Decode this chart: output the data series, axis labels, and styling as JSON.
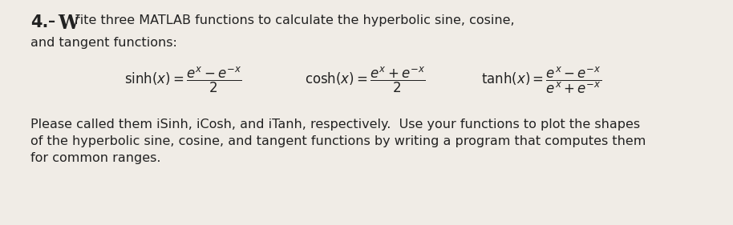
{
  "bg_color": "#f0ece6",
  "text_color": "#222222",
  "font_size_body": 11.5,
  "font_size_title_num": 15,
  "font_size_W": 17,
  "font_size_formula": 11.5,
  "line1_rest": "rite three MATLAB functions to calculate the hyperbolic sine, cosine,",
  "line2": "and tangent functions:",
  "para1": "Please called them iSinh, iCosh, and iTanh, respectively.  Use your functions to plot the shapes",
  "para2": "of the hyperbolic sine, cosine, and tangent functions by writing a program that computes them",
  "para3": "for common ranges.",
  "figwidth": 9.14,
  "figheight": 2.81,
  "dpi": 100
}
